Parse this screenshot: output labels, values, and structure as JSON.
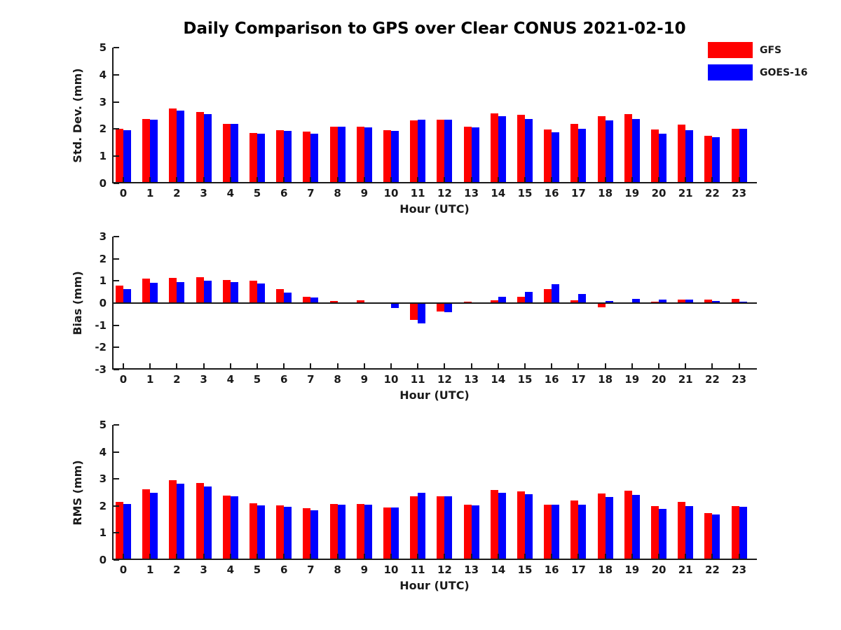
{
  "title": "Daily Comparison to GPS over Clear CONUS 2021-02-10",
  "colors": {
    "gfs": "#ff0000",
    "goes16": "#0000ff",
    "axis": "#1a1a1a",
    "background": "#ffffff"
  },
  "legend": {
    "position": "top-right-outside",
    "items": [
      {
        "label": "GFS",
        "color": "#ff0000"
      },
      {
        "label": "GOES-16",
        "color": "#0000ff"
      }
    ]
  },
  "chart_data": [
    {
      "type": "bar",
      "panel": "std-dev",
      "ylabel": "Std. Dev. (mm)",
      "xlabel": "Hour (UTC)",
      "ylim": [
        0,
        5
      ],
      "yticks": [
        0,
        1,
        2,
        3,
        4,
        5
      ],
      "grid": false,
      "categories": [
        "0",
        "1",
        "2",
        "3",
        "4",
        "5",
        "6",
        "7",
        "8",
        "9",
        "10",
        "11",
        "12",
        "13",
        "14",
        "15",
        "16",
        "17",
        "18",
        "19",
        "20",
        "21",
        "22",
        "23"
      ],
      "series": [
        {
          "name": "GFS",
          "color": "#ff0000",
          "values": [
            2.0,
            2.38,
            2.75,
            2.62,
            2.18,
            1.85,
            1.95,
            1.9,
            2.08,
            2.08,
            1.96,
            2.31,
            2.34,
            2.1,
            2.57,
            2.52,
            1.98,
            2.18,
            2.47,
            2.54,
            1.98,
            2.16,
            1.76,
            2.0
          ]
        },
        {
          "name": "GOES-16",
          "color": "#0000ff",
          "values": [
            1.96,
            2.34,
            2.67,
            2.54,
            2.18,
            1.82,
            1.93,
            1.84,
            2.08,
            2.05,
            1.93,
            2.34,
            2.34,
            2.06,
            2.48,
            2.37,
            1.87,
            2.0,
            2.31,
            2.38,
            1.83,
            1.96,
            1.7,
            2.0
          ]
        }
      ]
    },
    {
      "type": "bar",
      "panel": "bias",
      "ylabel": "Bias (mm)",
      "xlabel": "Hour (UTC)",
      "ylim": [
        -3,
        3
      ],
      "yticks": [
        -3,
        -2,
        -1,
        0,
        1,
        2,
        3
      ],
      "grid": false,
      "categories": [
        "0",
        "1",
        "2",
        "3",
        "4",
        "5",
        "6",
        "7",
        "8",
        "9",
        "10",
        "11",
        "12",
        "13",
        "14",
        "15",
        "16",
        "17",
        "18",
        "19",
        "20",
        "21",
        "22",
        "23"
      ],
      "series": [
        {
          "name": "GFS",
          "color": "#ff0000",
          "values": [
            0.78,
            1.1,
            1.15,
            1.18,
            1.03,
            1.02,
            0.62,
            0.28,
            0.08,
            0.13,
            -0.03,
            -0.76,
            -0.37,
            0.07,
            0.12,
            0.3,
            0.62,
            0.12,
            -0.2,
            0.02,
            0.05,
            0.15,
            0.15,
            0.2
          ]
        },
        {
          "name": "GOES-16",
          "color": "#0000ff",
          "values": [
            0.62,
            0.93,
            0.96,
            1.0,
            0.95,
            0.9,
            0.48,
            0.25,
            -0.04,
            0.0,
            -0.23,
            -0.93,
            -0.42,
            0.0,
            0.28,
            0.52,
            0.85,
            0.42,
            0.1,
            0.2,
            0.15,
            0.15,
            0.08,
            0.05
          ]
        }
      ]
    },
    {
      "type": "bar",
      "panel": "rms",
      "ylabel": "RMS (mm)",
      "xlabel": "Hour (UTC)",
      "ylim": [
        0,
        5
      ],
      "yticks": [
        0,
        1,
        2,
        3,
        4,
        5
      ],
      "grid": false,
      "categories": [
        "0",
        "1",
        "2",
        "3",
        "4",
        "5",
        "6",
        "7",
        "8",
        "9",
        "10",
        "11",
        "12",
        "13",
        "14",
        "15",
        "16",
        "17",
        "18",
        "19",
        "20",
        "21",
        "22",
        "23"
      ],
      "series": [
        {
          "name": "GFS",
          "color": "#ff0000",
          "values": [
            2.14,
            2.62,
            2.95,
            2.85,
            2.38,
            2.1,
            2.03,
            1.93,
            2.07,
            2.07,
            1.95,
            2.37,
            2.35,
            2.05,
            2.59,
            2.53,
            2.05,
            2.2,
            2.46,
            2.56,
            1.99,
            2.16,
            1.73,
            1.99
          ]
        },
        {
          "name": "GOES-16",
          "color": "#0000ff",
          "values": [
            2.06,
            2.5,
            2.83,
            2.72,
            2.36,
            2.03,
            1.98,
            1.85,
            2.05,
            2.05,
            1.95,
            2.48,
            2.35,
            2.03,
            2.5,
            2.43,
            2.05,
            2.05,
            2.33,
            2.4,
            1.89,
            2.0,
            1.69,
            1.97
          ]
        }
      ]
    }
  ]
}
